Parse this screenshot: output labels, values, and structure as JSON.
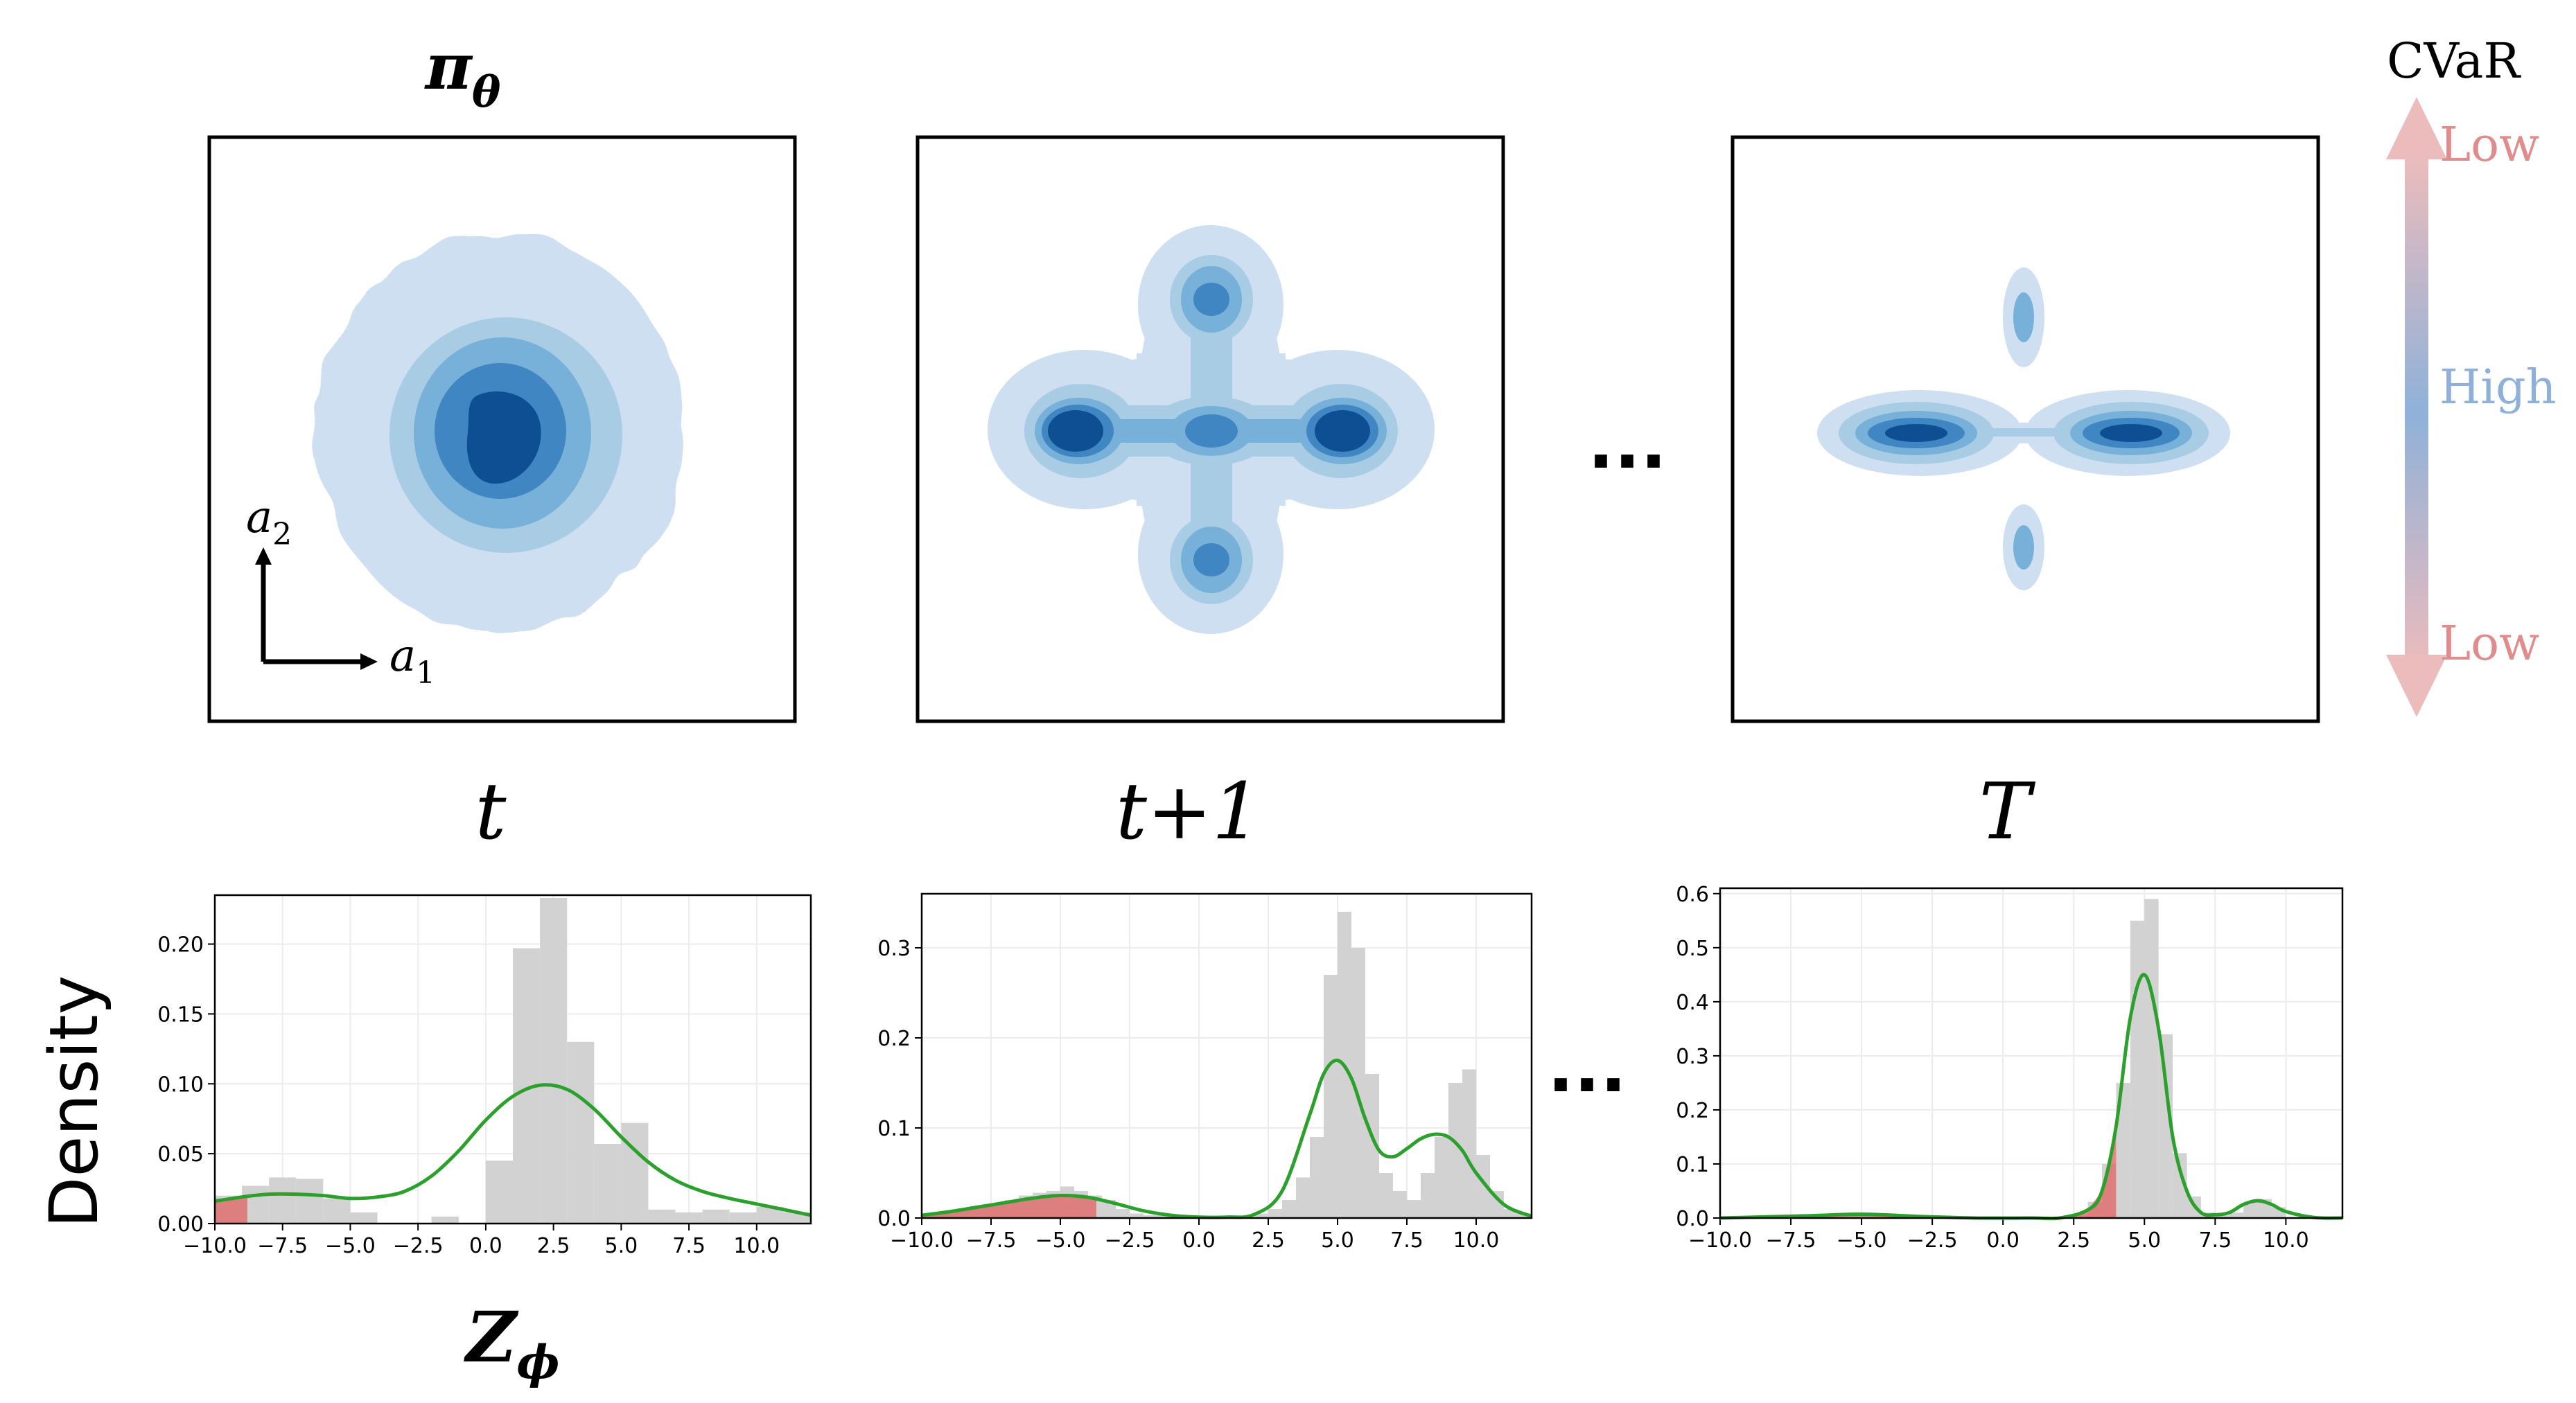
{
  "labels": {
    "policy": "π",
    "policy_sub": "θ",
    "axis_a1": "a",
    "axis_a1_sub": "1",
    "axis_a2": "a",
    "axis_a2_sub": "2",
    "step_t": "t",
    "step_t1": "t+1",
    "step_T": "T",
    "ellipsis_top": "...",
    "ellipsis_bottom": "...",
    "density_ylabel": "Density",
    "zphi": "Z",
    "zphi_sub": "ϕ"
  },
  "cvar": {
    "title": "CVaR",
    "low_top": "Low",
    "high": "High",
    "low_bottom": "Low",
    "colors": {
      "low": "#e8a0a0",
      "high": "#8fb1d9"
    }
  },
  "colors": {
    "contour_levels": [
      "#cddff0",
      "#a8cce4",
      "#77b0d8",
      "#3f86c2",
      "#0e4f93"
    ],
    "histogram": "#d2d2d2",
    "cvar_fill": "#e06a6a",
    "kde_line": "#2ca02c"
  },
  "chart_data": [
    {
      "type": "bar",
      "panel": "t",
      "xlim": [
        -10,
        12
      ],
      "ylim": [
        0,
        0.235
      ],
      "xticks": [
        "−10.0",
        "−7.5",
        "−5.0",
        "−2.5",
        "0.0",
        "2.5",
        "5.0",
        "7.5",
        "10.0"
      ],
      "yticks": [
        "0.00",
        "0.05",
        "0.10",
        "0.15",
        "0.20"
      ],
      "histogram": {
        "bin_edges": [
          -10,
          -9,
          -8,
          -7,
          -6,
          -5,
          -4,
          -3,
          -2,
          -1,
          0,
          1,
          2,
          3,
          4,
          5,
          6,
          7,
          8,
          9,
          10,
          11,
          12
        ],
        "values": [
          0.02,
          0.027,
          0.033,
          0.032,
          0.018,
          0.008,
          0,
          0,
          0.005,
          0,
          0.045,
          0.197,
          0.233,
          0.13,
          0.057,
          0.072,
          0.01,
          0.008,
          0.01,
          0.008,
          0.012,
          0.008
        ]
      },
      "kde": {
        "x": [
          -10,
          -9,
          -8,
          -7,
          -6,
          -5,
          -4,
          -3,
          -2,
          -1,
          0,
          1,
          2,
          3,
          4,
          5,
          6,
          7,
          8,
          9,
          10,
          11,
          12
        ],
        "y": [
          0.016,
          0.019,
          0.021,
          0.021,
          0.02,
          0.018,
          0.019,
          0.023,
          0.034,
          0.052,
          0.074,
          0.091,
          0.099,
          0.096,
          0.082,
          0.062,
          0.044,
          0.031,
          0.023,
          0.018,
          0.014,
          0.01,
          0.006
        ]
      },
      "cvar_region_max_x": -8.8
    },
    {
      "type": "bar",
      "panel": "t+1",
      "xlim": [
        -10,
        12
      ],
      "ylim": [
        0,
        0.36
      ],
      "xticks": [
        "−10.0",
        "−7.5",
        "−5.0",
        "−2.5",
        "0.0",
        "2.5",
        "5.0",
        "7.5",
        "10.0"
      ],
      "yticks": [
        "0.0",
        "0.1",
        "0.2",
        "0.3"
      ],
      "histogram": {
        "bin_edges": [
          -10,
          -9.5,
          -9,
          -8.5,
          -8,
          -7.5,
          -7,
          -6.5,
          -6,
          -5.5,
          -5,
          -4.5,
          -4,
          -3.5,
          -3,
          -2.5,
          -2,
          -1.5,
          -1,
          -0.5,
          0,
          0.5,
          1,
          1.5,
          2,
          2.5,
          3,
          3.5,
          4,
          4.5,
          5,
          5.5,
          6,
          6.5,
          7,
          7.5,
          8,
          8.5,
          9,
          9.5,
          10,
          10.5,
          11,
          11.5,
          12
        ],
        "values": [
          0.003,
          0.005,
          0.008,
          0.01,
          0.012,
          0.015,
          0.02,
          0.025,
          0.028,
          0.03,
          0.035,
          0.03,
          0.025,
          0.02,
          0.01,
          0.005,
          0.003,
          0.003,
          0,
          0,
          0,
          0,
          0,
          0,
          0.005,
          0.01,
          0.02,
          0.045,
          0.09,
          0.27,
          0.34,
          0.3,
          0.16,
          0.05,
          0.03,
          0.02,
          0.05,
          0.09,
          0.15,
          0.165,
          0.07,
          0.03,
          0.01,
          0.005
        ]
      },
      "kde": {
        "x": [
          -10,
          -9,
          -8,
          -7,
          -6,
          -5,
          -4,
          -3,
          -2,
          -1,
          0,
          1,
          2,
          3,
          4,
          4.5,
          5,
          5.5,
          6,
          6.5,
          7,
          7.5,
          8,
          8.5,
          9,
          9.5,
          10,
          11,
          12
        ],
        "y": [
          0.003,
          0.007,
          0.012,
          0.017,
          0.022,
          0.025,
          0.023,
          0.016,
          0.008,
          0.003,
          0.001,
          0.001,
          0.004,
          0.03,
          0.115,
          0.16,
          0.175,
          0.155,
          0.11,
          0.075,
          0.068,
          0.077,
          0.088,
          0.093,
          0.09,
          0.075,
          0.05,
          0.015,
          0.002
        ]
      },
      "cvar_region_max_x": -3.7
    },
    {
      "type": "bar",
      "panel": "T",
      "xlim": [
        -10,
        12
      ],
      "ylim": [
        0,
        0.61
      ],
      "xticks": [
        "−10.0",
        "−7.5",
        "−5.0",
        "−2.5",
        "0.0",
        "2.5",
        "5.0",
        "7.5",
        "10.0"
      ],
      "yticks": [
        "0.0",
        "0.1",
        "0.2",
        "0.3",
        "0.4",
        "0.5",
        "0.6"
      ],
      "histogram": {
        "bin_edges": [
          2.5,
          3,
          3.5,
          4,
          4.5,
          5,
          5.5,
          6,
          6.5,
          7,
          7.5,
          8,
          8.5,
          9,
          9.5,
          10
        ],
        "values": [
          0.005,
          0.03,
          0.1,
          0.25,
          0.55,
          0.59,
          0.34,
          0.12,
          0.04,
          0.01,
          0.005,
          0.01,
          0.03,
          0.035,
          0.02
        ]
      },
      "kde": {
        "x": [
          -10,
          -7,
          -5,
          -3,
          -1,
          1,
          2,
          3,
          3.5,
          4,
          4.5,
          5,
          5.5,
          6,
          6.5,
          7,
          7.5,
          8,
          8.5,
          9,
          9.5,
          10,
          11,
          12
        ],
        "y": [
          0.0,
          0.004,
          0.007,
          0.003,
          0.0,
          0.0,
          0.0,
          0.015,
          0.05,
          0.17,
          0.37,
          0.45,
          0.35,
          0.15,
          0.05,
          0.01,
          0.006,
          0.01,
          0.025,
          0.032,
          0.025,
          0.012,
          0.001,
          0.0
        ]
      },
      "cvar_region_max_x": 4.0
    }
  ]
}
